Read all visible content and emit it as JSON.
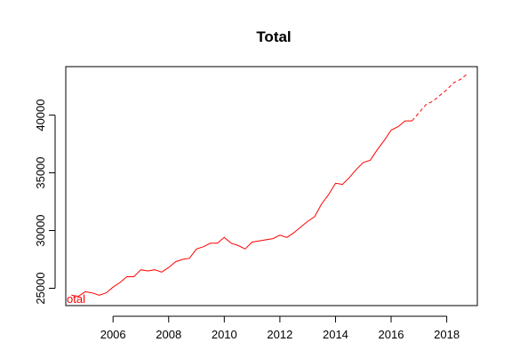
{
  "chart_data": {
    "type": "line",
    "title": "Total",
    "xlabel": "",
    "ylabel": "",
    "xlim": [
      2004.3,
      2019.1
    ],
    "ylim": [
      23500,
      44200
    ],
    "x_ticks": [
      2006,
      2008,
      2010,
      2012,
      2014,
      2016,
      2018
    ],
    "y_ticks": [
      25000,
      30000,
      35000,
      40000
    ],
    "grid": false,
    "legend": "none",
    "series_label": "otal",
    "series": [
      {
        "style": "solid",
        "color": "#ff0000",
        "x": [
          2004.5,
          2004.75,
          2005.0,
          2005.25,
          2005.5,
          2005.75,
          2006.0,
          2006.25,
          2006.5,
          2006.75,
          2007.0,
          2007.25,
          2007.5,
          2007.75,
          2008.0,
          2008.25,
          2008.5,
          2008.75,
          2009.0,
          2009.25,
          2009.5,
          2009.75,
          2010.0,
          2010.25,
          2010.5,
          2010.75,
          2011.0,
          2011.25,
          2011.5,
          2011.75,
          2012.0,
          2012.25,
          2012.5,
          2012.75,
          2013.0,
          2013.25,
          2013.5,
          2013.75,
          2014.0,
          2014.25,
          2014.5,
          2014.75,
          2015.0,
          2015.25,
          2015.5,
          2015.75,
          2016.0,
          2016.25,
          2016.5,
          2016.75
        ],
        "y": [
          24400,
          24300,
          24700,
          24600,
          24400,
          24600,
          25100,
          25500,
          26000,
          26000,
          26600,
          26500,
          26600,
          26400,
          26800,
          27300,
          27500,
          27600,
          28400,
          28600,
          28900,
          28900,
          29400,
          28900,
          28700,
          28400,
          29000,
          29100,
          29200,
          29300,
          29600,
          29400,
          29800,
          30300,
          30800,
          31200,
          32300,
          33100,
          34100,
          34000,
          34600,
          35300,
          35900,
          36100,
          37000,
          37800,
          38700,
          39000,
          39500,
          39500
        ]
      },
      {
        "style": "dashed",
        "color": "#ff0000",
        "x": [
          2016.75,
          2017.0,
          2017.25,
          2017.5,
          2017.75,
          2018.0,
          2018.25,
          2018.5,
          2018.75
        ],
        "y": [
          39500,
          40200,
          40900,
          41200,
          41700,
          42200,
          42800,
          43100,
          43600
        ]
      }
    ]
  }
}
